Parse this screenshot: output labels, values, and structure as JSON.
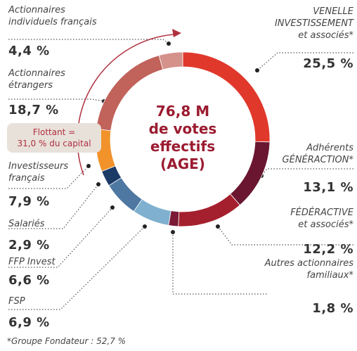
{
  "chart_data": {
    "type": "pie",
    "center_text": "76,8 M\nde votes\neffectifs\n(AGE)",
    "annotation": "Flottant =\n31,0 % du capital",
    "footnote": "*Groupe Fondateur : 52,7 %",
    "categories": [
      "VENELLE\nINVESTISSEMENT\net associés*",
      "Adhérents\nGÉNÉRACTION*",
      "FÉDÉRACTIVE\net associés*",
      "Autres actionnaires\nfamiliaux*",
      "FSP",
      "FFP Invest",
      "Salariés",
      "Investisseurs\nfrançais",
      "Actionnaires\nétrangers",
      "Actionnaires\nindividuels français"
    ],
    "values": [
      25.5,
      13.1,
      12.2,
      1.8,
      6.9,
      6.6,
      2.9,
      7.9,
      18.7,
      4.4
    ],
    "value_labels": [
      "25,5 %",
      "13,1 %",
      "12,2 %",
      "1,8 %",
      "6,9 %",
      "6,6 %",
      "2,9 %",
      "7,9 %",
      "18,7 %",
      "4,4 %"
    ],
    "colors": [
      "#e1382c",
      "#6a1630",
      "#a5202e",
      "#7a1a36",
      "#80b0cf",
      "#4e77a2",
      "#1b3a66",
      "#f1922a",
      "#c1625b",
      "#d4928a"
    ]
  }
}
